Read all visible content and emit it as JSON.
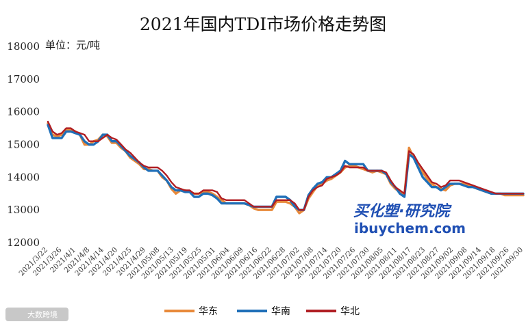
{
  "chart_data": {
    "type": "line",
    "title": "2021年国内TDI市场价格走势图",
    "unit_label": "单位：元/吨",
    "xlabel": "",
    "ylabel": "",
    "ylim": [
      12000,
      18000
    ],
    "yticks": [
      12000,
      13000,
      14000,
      15000,
      16000,
      17000,
      18000
    ],
    "grid": false,
    "legend_position": "bottom",
    "xtick_labels": [
      "2021/3/22",
      "2021/3/26",
      "2021/4/1",
      "2021/4/8",
      "2021/4/14",
      "2021/4/20",
      "2021/4/25",
      "2021/4/29",
      "2021/05/08",
      "2021/05/13",
      "2021/05/19",
      "2021/05/25",
      "2021/05/31",
      "2021/06/04",
      "2021/06/09",
      "2021/06/16",
      "2021/06/22",
      "2021/06/28",
      "2021/07/02",
      "2021/07/08",
      "2021/07/14",
      "2021/07/20",
      "2021/07/26",
      "2021/07/30",
      "2021/08/05",
      "2021/08/11",
      "2021/08/17",
      "2021/08/23",
      "2021/08/27",
      "2021/09/02",
      "2021/09/08",
      "2021/09/14",
      "2021/09/18",
      "2021/09/26",
      "2021/09/30"
    ],
    "series": [
      {
        "name": "华东",
        "color": "#e8893a",
        "values": [
          15650,
          15300,
          15250,
          15300,
          15450,
          15450,
          15400,
          15300,
          15000,
          15000,
          15100,
          15150,
          15300,
          15250,
          15050,
          15050,
          14900,
          14800,
          14600,
          14500,
          14400,
          14250,
          14250,
          14200,
          14200,
          14000,
          13900,
          13650,
          13500,
          13600,
          13600,
          13550,
          13500,
          13500,
          13550,
          13550,
          13500,
          13400,
          13300,
          13200,
          13200,
          13200,
          13200,
          13200,
          13150,
          13050,
          13000,
          13000,
          13000,
          13000,
          13250,
          13250,
          13250,
          13200,
          13100,
          12900,
          13000,
          13350,
          13550,
          13750,
          13800,
          13900,
          13950,
          14050,
          14150,
          14300,
          14350,
          14350,
          14300,
          14250,
          14200,
          14150,
          14200,
          14150,
          14100,
          13800,
          13650,
          13550,
          13450,
          14900,
          14600,
          14350,
          14150,
          13950,
          13800,
          13700,
          13650,
          13600,
          13750,
          13800,
          13800,
          13800,
          13750,
          13700,
          13650,
          13600,
          13550,
          13500,
          13500,
          13500,
          13450,
          13450,
          13450,
          13450,
          13450
        ]
      },
      {
        "name": "华南",
        "color": "#1f6fb8",
        "values": [
          15600,
          15200,
          15200,
          15200,
          15400,
          15400,
          15350,
          15300,
          15100,
          15000,
          15000,
          15100,
          15300,
          15300,
          15100,
          15100,
          14950,
          14800,
          14650,
          14550,
          14450,
          14300,
          14200,
          14200,
          14200,
          14050,
          13900,
          13700,
          13600,
          13600,
          13550,
          13550,
          13400,
          13400,
          13500,
          13500,
          13450,
          13350,
          13200,
          13200,
          13200,
          13200,
          13200,
          13200,
          13150,
          13100,
          13100,
          13100,
          13100,
          13100,
          13400,
          13400,
          13400,
          13300,
          13100,
          13000,
          13000,
          13450,
          13650,
          13800,
          13850,
          14000,
          14000,
          14100,
          14200,
          14500,
          14400,
          14400,
          14400,
          14400,
          14200,
          14200,
          14200,
          14200,
          14100,
          13850,
          13700,
          13500,
          13400,
          14700,
          14600,
          14300,
          14000,
          13850,
          13700,
          13700,
          13600,
          13700,
          13800,
          13800,
          13800,
          13750,
          13700,
          13700,
          13650,
          13600,
          13550,
          13500,
          13500,
          13500,
          13500,
          13500,
          13500,
          13500,
          13500
        ]
      },
      {
        "name": "华北",
        "color": "#b01e23",
        "values": [
          15700,
          15400,
          15300,
          15350,
          15500,
          15500,
          15400,
          15350,
          15300,
          15100,
          15100,
          15100,
          15200,
          15300,
          15200,
          15150,
          15000,
          14850,
          14750,
          14600,
          14450,
          14350,
          14300,
          14300,
          14300,
          14200,
          14050,
          13850,
          13700,
          13650,
          13600,
          13600,
          13500,
          13500,
          13600,
          13600,
          13600,
          13550,
          13350,
          13300,
          13300,
          13300,
          13300,
          13300,
          13200,
          13100,
          13100,
          13100,
          13100,
          13100,
          13300,
          13300,
          13300,
          13300,
          13200,
          13000,
          13000,
          13400,
          13600,
          13700,
          13750,
          13950,
          14000,
          14050,
          14150,
          14350,
          14300,
          14300,
          14300,
          14300,
          14200,
          14200,
          14200,
          14200,
          14150,
          13900,
          13700,
          13600,
          13500,
          14800,
          14700,
          14450,
          14250,
          14050,
          13850,
          13800,
          13700,
          13750,
          13900,
          13900,
          13900,
          13850,
          13800,
          13750,
          13700,
          13650,
          13600,
          13550,
          13500,
          13500,
          13500,
          13500,
          13500,
          13500,
          13500
        ]
      }
    ]
  },
  "watermark": {
    "brand_cn": "买化塑·研究院",
    "brand_domain": "ibuychem.com",
    "corner_text": "大数跨境"
  }
}
